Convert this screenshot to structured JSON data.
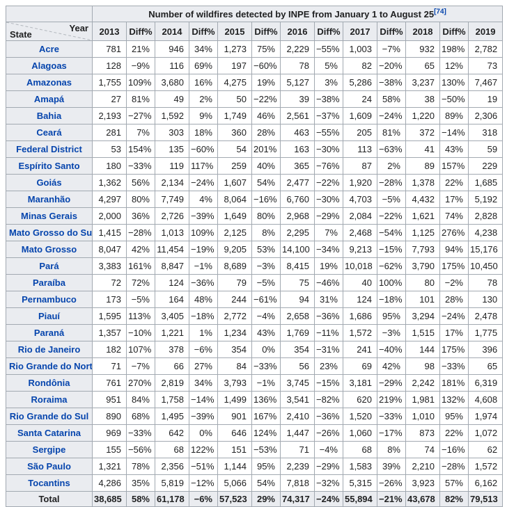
{
  "colors": {
    "header_background": "#eaecf0",
    "table_border": "#a2a9b1",
    "link_blue": "#0645ad",
    "body_text": "#202122"
  },
  "chart_data": {
    "type": "table",
    "title": "Number of wildfires detected by INPE from January 1 to August 25",
    "reference": "[74]",
    "corner": {
      "top_right": "Year",
      "bottom_left": "State"
    },
    "columns": [
      "2013",
      "Diff%",
      "2014",
      "Diff%",
      "2015",
      "Diff%",
      "2016",
      "Diff%",
      "2017",
      "Diff%",
      "2018",
      "Diff%",
      "2019"
    ],
    "rows": [
      {
        "state": "Acre",
        "values": [
          "781",
          "21%",
          "946",
          "34%",
          "1,273",
          "75%",
          "2,229",
          "−55%",
          "1,003",
          "−7%",
          "932",
          "198%",
          "2,782"
        ]
      },
      {
        "state": "Alagoas",
        "values": [
          "128",
          "−9%",
          "116",
          "69%",
          "197",
          "−60%",
          "78",
          "5%",
          "82",
          "−20%",
          "65",
          "12%",
          "73"
        ]
      },
      {
        "state": "Amazonas",
        "values": [
          "1,755",
          "109%",
          "3,680",
          "16%",
          "4,275",
          "19%",
          "5,127",
          "3%",
          "5,286",
          "−38%",
          "3,237",
          "130%",
          "7,467"
        ]
      },
      {
        "state": "Amapá",
        "values": [
          "27",
          "81%",
          "49",
          "2%",
          "50",
          "−22%",
          "39",
          "−38%",
          "24",
          "58%",
          "38",
          "−50%",
          "19"
        ]
      },
      {
        "state": "Bahia",
        "values": [
          "2,193",
          "−27%",
          "1,592",
          "9%",
          "1,749",
          "46%",
          "2,561",
          "−37%",
          "1,609",
          "−24%",
          "1,220",
          "89%",
          "2,306"
        ]
      },
      {
        "state": "Ceará",
        "values": [
          "281",
          "7%",
          "303",
          "18%",
          "360",
          "28%",
          "463",
          "−55%",
          "205",
          "81%",
          "372",
          "−14%",
          "318"
        ]
      },
      {
        "state": "Federal District",
        "values": [
          "53",
          "154%",
          "135",
          "−60%",
          "54",
          "201%",
          "163",
          "−30%",
          "113",
          "−63%",
          "41",
          "43%",
          "59"
        ]
      },
      {
        "state": "Espírito Santo",
        "values": [
          "180",
          "−33%",
          "119",
          "117%",
          "259",
          "40%",
          "365",
          "−76%",
          "87",
          "2%",
          "89",
          "157%",
          "229"
        ]
      },
      {
        "state": "Goiás",
        "values": [
          "1,362",
          "56%",
          "2,134",
          "−24%",
          "1,607",
          "54%",
          "2,477",
          "−22%",
          "1,920",
          "−28%",
          "1,378",
          "22%",
          "1,685"
        ]
      },
      {
        "state": "Maranhão",
        "values": [
          "4,297",
          "80%",
          "7,749",
          "4%",
          "8,064",
          "−16%",
          "6,760",
          "−30%",
          "4,703",
          "−5%",
          "4,432",
          "17%",
          "5,192"
        ]
      },
      {
        "state": "Minas Gerais",
        "values": [
          "2,000",
          "36%",
          "2,726",
          "−39%",
          "1,649",
          "80%",
          "2,968",
          "−29%",
          "2,084",
          "−22%",
          "1,621",
          "74%",
          "2,828"
        ]
      },
      {
        "state": "Mato Grosso do Sul",
        "values": [
          "1,415",
          "−28%",
          "1,013",
          "109%",
          "2,125",
          "8%",
          "2,295",
          "7%",
          "2,468",
          "−54%",
          "1,125",
          "276%",
          "4,238"
        ]
      },
      {
        "state": "Mato Grosso",
        "values": [
          "8,047",
          "42%",
          "11,454",
          "−19%",
          "9,205",
          "53%",
          "14,100",
          "−34%",
          "9,213",
          "−15%",
          "7,793",
          "94%",
          "15,176"
        ]
      },
      {
        "state": "Pará",
        "values": [
          "3,383",
          "161%",
          "8,847",
          "−1%",
          "8,689",
          "−3%",
          "8,415",
          "19%",
          "10,018",
          "−62%",
          "3,790",
          "175%",
          "10,450"
        ]
      },
      {
        "state": "Paraíba",
        "values": [
          "72",
          "72%",
          "124",
          "−36%",
          "79",
          "−5%",
          "75",
          "−46%",
          "40",
          "100%",
          "80",
          "−2%",
          "78"
        ]
      },
      {
        "state": "Pernambuco",
        "values": [
          "173",
          "−5%",
          "164",
          "48%",
          "244",
          "−61%",
          "94",
          "31%",
          "124",
          "−18%",
          "101",
          "28%",
          "130"
        ]
      },
      {
        "state": "Piauí",
        "values": [
          "1,595",
          "113%",
          "3,405",
          "−18%",
          "2,772",
          "−4%",
          "2,658",
          "−36%",
          "1,686",
          "95%",
          "3,294",
          "−24%",
          "2,478"
        ]
      },
      {
        "state": "Paraná",
        "values": [
          "1,357",
          "−10%",
          "1,221",
          "1%",
          "1,234",
          "43%",
          "1,769",
          "−11%",
          "1,572",
          "−3%",
          "1,515",
          "17%",
          "1,775"
        ]
      },
      {
        "state": "Rio de Janeiro",
        "values": [
          "182",
          "107%",
          "378",
          "−6%",
          "354",
          "0%",
          "354",
          "−31%",
          "241",
          "−40%",
          "144",
          "175%",
          "396"
        ]
      },
      {
        "state": "Rio Grande do Norte",
        "values": [
          "71",
          "−7%",
          "66",
          "27%",
          "84",
          "−33%",
          "56",
          "23%",
          "69",
          "42%",
          "98",
          "−33%",
          "65"
        ]
      },
      {
        "state": "Rondônia",
        "values": [
          "761",
          "270%",
          "2,819",
          "34%",
          "3,793",
          "−1%",
          "3,745",
          "−15%",
          "3,181",
          "−29%",
          "2,242",
          "181%",
          "6,319"
        ]
      },
      {
        "state": "Roraima",
        "values": [
          "951",
          "84%",
          "1,758",
          "−14%",
          "1,499",
          "136%",
          "3,541",
          "−82%",
          "620",
          "219%",
          "1,981",
          "132%",
          "4,608"
        ]
      },
      {
        "state": "Rio Grande do Sul",
        "values": [
          "890",
          "68%",
          "1,495",
          "−39%",
          "901",
          "167%",
          "2,410",
          "−36%",
          "1,520",
          "−33%",
          "1,010",
          "95%",
          "1,974"
        ]
      },
      {
        "state": "Santa Catarina",
        "values": [
          "969",
          "−33%",
          "642",
          "0%",
          "646",
          "124%",
          "1,447",
          "−26%",
          "1,060",
          "−17%",
          "873",
          "22%",
          "1,072"
        ]
      },
      {
        "state": "Sergipe",
        "values": [
          "155",
          "−56%",
          "68",
          "122%",
          "151",
          "−53%",
          "71",
          "−4%",
          "68",
          "8%",
          "74",
          "−16%",
          "62"
        ]
      },
      {
        "state": "São Paulo",
        "values": [
          "1,321",
          "78%",
          "2,356",
          "−51%",
          "1,144",
          "95%",
          "2,239",
          "−29%",
          "1,583",
          "39%",
          "2,210",
          "−28%",
          "1,572"
        ]
      },
      {
        "state": "Tocantins",
        "values": [
          "4,286",
          "35%",
          "5,819",
          "−12%",
          "5,066",
          "54%",
          "7,818",
          "−32%",
          "5,315",
          "−26%",
          "3,923",
          "57%",
          "6,162"
        ]
      }
    ],
    "total": {
      "label": "Total",
      "values": [
        "38,685",
        "58%",
        "61,178",
        "−6%",
        "57,523",
        "29%",
        "74,317",
        "−24%",
        "55,894",
        "−21%",
        "43,678",
        "82%",
        "79,513"
      ]
    }
  }
}
